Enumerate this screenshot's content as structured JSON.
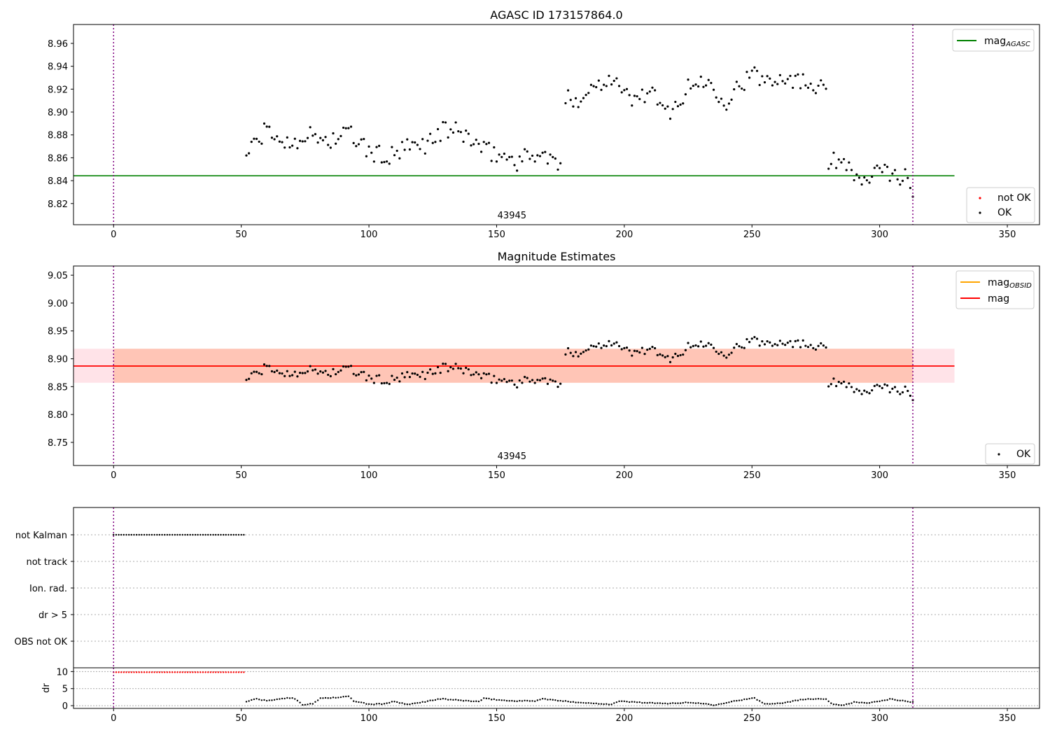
{
  "chart_data": [
    {
      "type": "scatter",
      "title": "AGASC ID 173157864.0",
      "xlabel": "",
      "ylabel": "",
      "xlim": [
        -15.7,
        362.6
      ],
      "ylim": [
        8.8015,
        8.9765
      ],
      "xticks": [
        0,
        50,
        100,
        150,
        200,
        250,
        300,
        350
      ],
      "yticks": [
        8.82,
        8.84,
        8.86,
        8.88,
        8.9,
        8.92,
        8.94,
        8.96
      ],
      "grid": false,
      "annotation": "43945",
      "vlines": [
        0,
        313
      ],
      "hlines": [
        {
          "name": "mag_AGASC",
          "y": 8.8443,
          "x_range": [
            -15.7,
            329.3
          ],
          "color": "#008000"
        }
      ],
      "legend_upper": {
        "placement": "top-right",
        "entries": [
          {
            "label": "mag",
            "sub": "AGASC",
            "color": "#008000"
          }
        ]
      },
      "legend_lower": {
        "placement": "bottom-right",
        "entries": [
          {
            "label": "not OK",
            "color": "#ff0000"
          },
          {
            "label": "OK",
            "color": "#000000"
          }
        ]
      },
      "series": [
        {
          "name": "OK",
          "color": "#000000",
          "segments": [
            {
              "x_start": 52,
              "x_end": 175,
              "anchors": [
                [
                  52,
                  8.864
                ],
                [
                  60,
                  8.884
                ],
                [
                  68,
                  8.872
                ],
                [
                  75,
                  8.88
                ],
                [
                  85,
                  8.875
                ],
                [
                  92,
                  8.882
                ],
                [
                  100,
                  8.865
                ],
                [
                  108,
                  8.86
                ],
                [
                  115,
                  8.868
                ],
                [
                  122,
                  8.872
                ],
                [
                  130,
                  8.885
                ],
                [
                  138,
                  8.88
                ],
                [
                  145,
                  8.866
                ],
                [
                  152,
                  8.862
                ],
                [
                  158,
                  8.857
                ],
                [
                  165,
                  8.864
                ],
                [
                  170,
                  8.86
                ],
                [
                  175,
                  8.852
                ]
              ]
            },
            {
              "x_start": 177,
              "x_end": 279,
              "anchors": [
                [
                  177,
                  8.91
                ],
                [
                  183,
                  8.913
                ],
                [
                  188,
                  8.922
                ],
                [
                  195,
                  8.932
                ],
                [
                  200,
                  8.915
                ],
                [
                  205,
                  8.91
                ],
                [
                  210,
                  8.921
                ],
                [
                  215,
                  8.899
                ],
                [
                  220,
                  8.905
                ],
                [
                  225,
                  8.92
                ],
                [
                  230,
                  8.928
                ],
                [
                  235,
                  8.922
                ],
                [
                  240,
                  8.91
                ],
                [
                  245,
                  8.924
                ],
                [
                  250,
                  8.932
                ],
                [
                  255,
                  8.928
                ],
                [
                  260,
                  8.932
                ],
                [
                  265,
                  8.93
                ],
                [
                  270,
                  8.926
                ],
                [
                  275,
                  8.925
                ],
                [
                  279,
                  8.927
                ]
              ]
            },
            {
              "x_start": 280,
              "x_end": 313,
              "anchors": [
                [
                  280,
                  8.856
                ],
                [
                  285,
                  8.857
                ],
                [
                  289,
                  8.857
                ],
                [
                  291,
                  8.838
                ],
                [
                  296,
                  8.843
                ],
                [
                  300,
                  8.847
                ],
                [
                  305,
                  8.846
                ],
                [
                  310,
                  8.843
                ],
                [
                  313,
                  8.83
                ]
              ]
            }
          ]
        }
      ]
    },
    {
      "type": "scatter",
      "title": "Magnitude Estimates",
      "xlabel": "",
      "ylabel": "",
      "xlim": [
        -15.7,
        362.6
      ],
      "ylim": [
        8.7085,
        9.0665
      ],
      "xticks": [
        0,
        50,
        100,
        150,
        200,
        250,
        300,
        350
      ],
      "yticks": [
        8.75,
        8.8,
        8.85,
        8.9,
        8.95,
        9.0,
        9.05
      ],
      "grid": false,
      "annotation": "43945",
      "vlines": [
        0,
        313
      ],
      "hlines": [
        {
          "name": "mag_OBSID",
          "y": 8.887,
          "x_range": [
            0,
            313
          ],
          "color": "#ffa500"
        },
        {
          "name": "mag",
          "y": 8.887,
          "x_range": [
            -15.7,
            329.3
          ],
          "color": "#ff0000"
        }
      ],
      "bands": [
        {
          "y_range": [
            8.857,
            8.918
          ],
          "x_range": [
            -15.7,
            329.3
          ],
          "color": "#ffc0cb"
        },
        {
          "y_range": [
            8.857,
            8.918
          ],
          "x_range": [
            0,
            313
          ],
          "color": "#ffa07a"
        }
      ],
      "legend_upper": {
        "placement": "top-right",
        "entries": [
          {
            "label": "mag",
            "sub": "OBSID",
            "color": "#ffa500"
          },
          {
            "label": "mag",
            "sub": "",
            "color": "#ff0000"
          }
        ]
      },
      "legend_lower": {
        "placement": "bottom-right",
        "entries": [
          {
            "label": "OK",
            "color": "#000000"
          }
        ]
      },
      "series": [
        {
          "name": "OK",
          "color": "#000000",
          "same_as_chart": 0
        }
      ]
    },
    {
      "type": "scatter",
      "title": "",
      "xlabel": "",
      "ylabel": "",
      "xlim": [
        -15.7,
        362.6
      ],
      "categories": [
        "not Kalman",
        "not track",
        "Ion. rad.",
        "dr > 5",
        "OBS not OK"
      ],
      "grid": true,
      "vlines": [
        0,
        313
      ],
      "series": [
        {
          "name": "not Kalman",
          "x_range": [
            0,
            51
          ],
          "color": "#000000"
        }
      ]
    },
    {
      "type": "scatter",
      "title": "",
      "xlabel": "",
      "ylabel": "dr",
      "xlim": [
        -15.7,
        362.6
      ],
      "ylim": [
        -0.8,
        11.1
      ],
      "xticks": [
        0,
        50,
        100,
        150,
        200,
        250,
        300,
        350
      ],
      "yticks": [
        0,
        5,
        10
      ],
      "grid": true,
      "vlines": [
        0,
        313
      ],
      "series": [
        {
          "name": "not OK",
          "color": "#ff0000",
          "x_range": [
            0,
            51
          ],
          "y": 9.8
        },
        {
          "name": "OK",
          "color": "#000000",
          "anchors": [
            [
              52,
              1.2
            ],
            [
              56,
              2.0
            ],
            [
              60,
              1.4
            ],
            [
              66,
              2.1
            ],
            [
              70,
              2.3
            ],
            [
              72,
              1.6
            ],
            [
              74,
              0.3
            ],
            [
              78,
              0.5
            ],
            [
              81,
              2.2
            ],
            [
              88,
              2.4
            ],
            [
              92,
              2.7
            ],
            [
              94,
              1.4
            ],
            [
              100,
              0.4
            ],
            [
              105,
              0.5
            ],
            [
              110,
              1.2
            ],
            [
              115,
              0.3
            ],
            [
              120,
              0.9
            ],
            [
              125,
              1.6
            ],
            [
              128,
              2.0
            ],
            [
              135,
              1.6
            ],
            [
              143,
              1.2
            ],
            [
              145,
              2.1
            ],
            [
              155,
              1.4
            ],
            [
              165,
              1.4
            ],
            [
              168,
              2.0
            ],
            [
              175,
              1.4
            ],
            [
              185,
              0.8
            ],
            [
              195,
              0.4
            ],
            [
              198,
              1.3
            ],
            [
              205,
              1.0
            ],
            [
              215,
              0.6
            ],
            [
              225,
              0.9
            ],
            [
              230,
              0.7
            ],
            [
              235,
              0.2
            ],
            [
              240,
              0.9
            ],
            [
              245,
              1.6
            ],
            [
              251,
              2.2
            ],
            [
              255,
              0.5
            ],
            [
              262,
              0.8
            ],
            [
              268,
              1.6
            ],
            [
              272,
              2.0
            ],
            [
              279,
              2.0
            ],
            [
              281,
              0.6
            ],
            [
              285,
              0.1
            ],
            [
              290,
              1.0
            ],
            [
              296,
              0.8
            ],
            [
              302,
              1.5
            ],
            [
              304,
              2.0
            ],
            [
              310,
              1.3
            ],
            [
              313,
              1.0
            ]
          ]
        }
      ]
    }
  ]
}
